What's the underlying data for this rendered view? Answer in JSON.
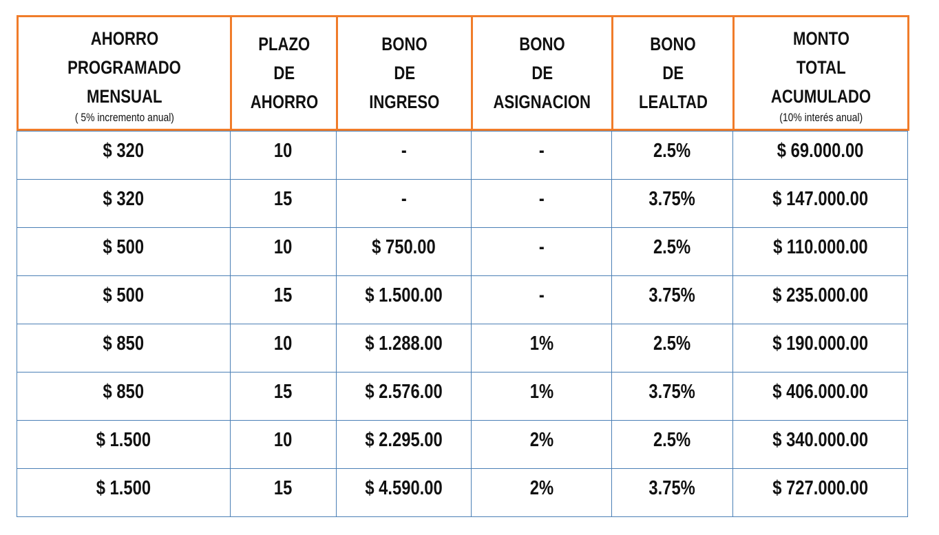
{
  "table": {
    "header": [
      {
        "lines": [
          "AHORRO",
          "PROGRAMADO",
          "MENSUAL"
        ],
        "note": "( 5% incremento anual)"
      },
      {
        "lines": [
          "PLAZO",
          "DE",
          "AHORRO"
        ]
      },
      {
        "lines": [
          "BONO",
          "DE",
          "INGRESO"
        ]
      },
      {
        "lines": [
          "BONO",
          "DE",
          "ASIGNACION"
        ]
      },
      {
        "lines": [
          "BONO",
          "DE",
          "LEALTAD"
        ]
      },
      {
        "lines": [
          "MONTO",
          "TOTAL",
          "ACUMULADO"
        ],
        "note": "(10% interés anual)"
      }
    ],
    "rows": [
      [
        "$ 320",
        "10",
        "-",
        "-",
        "2.5%",
        "$ 69.000.00"
      ],
      [
        "$ 320",
        "15",
        "-",
        "-",
        "3.75%",
        "$ 147.000.00"
      ],
      [
        "$ 500",
        "10",
        "$ 750.00",
        "-",
        "2.5%",
        "$ 110.000.00"
      ],
      [
        "$ 500",
        "15",
        "$ 1.500.00",
        "-",
        "3.75%",
        "$ 235.000.00"
      ],
      [
        "$ 850",
        "10",
        "$ 1.288.00",
        "1%",
        "2.5%",
        "$ 190.000.00"
      ],
      [
        "$ 850",
        "15",
        "$ 2.576.00",
        "1%",
        "3.75%",
        "$ 406.000.00"
      ],
      [
        "$ 1.500",
        "10",
        "$ 2.295.00",
        "2%",
        "2.5%",
        "$ 340.000.00"
      ],
      [
        "$ 1.500",
        "15",
        "$ 4.590.00",
        "2%",
        "3.75%",
        "$ 727.000.00"
      ]
    ]
  }
}
